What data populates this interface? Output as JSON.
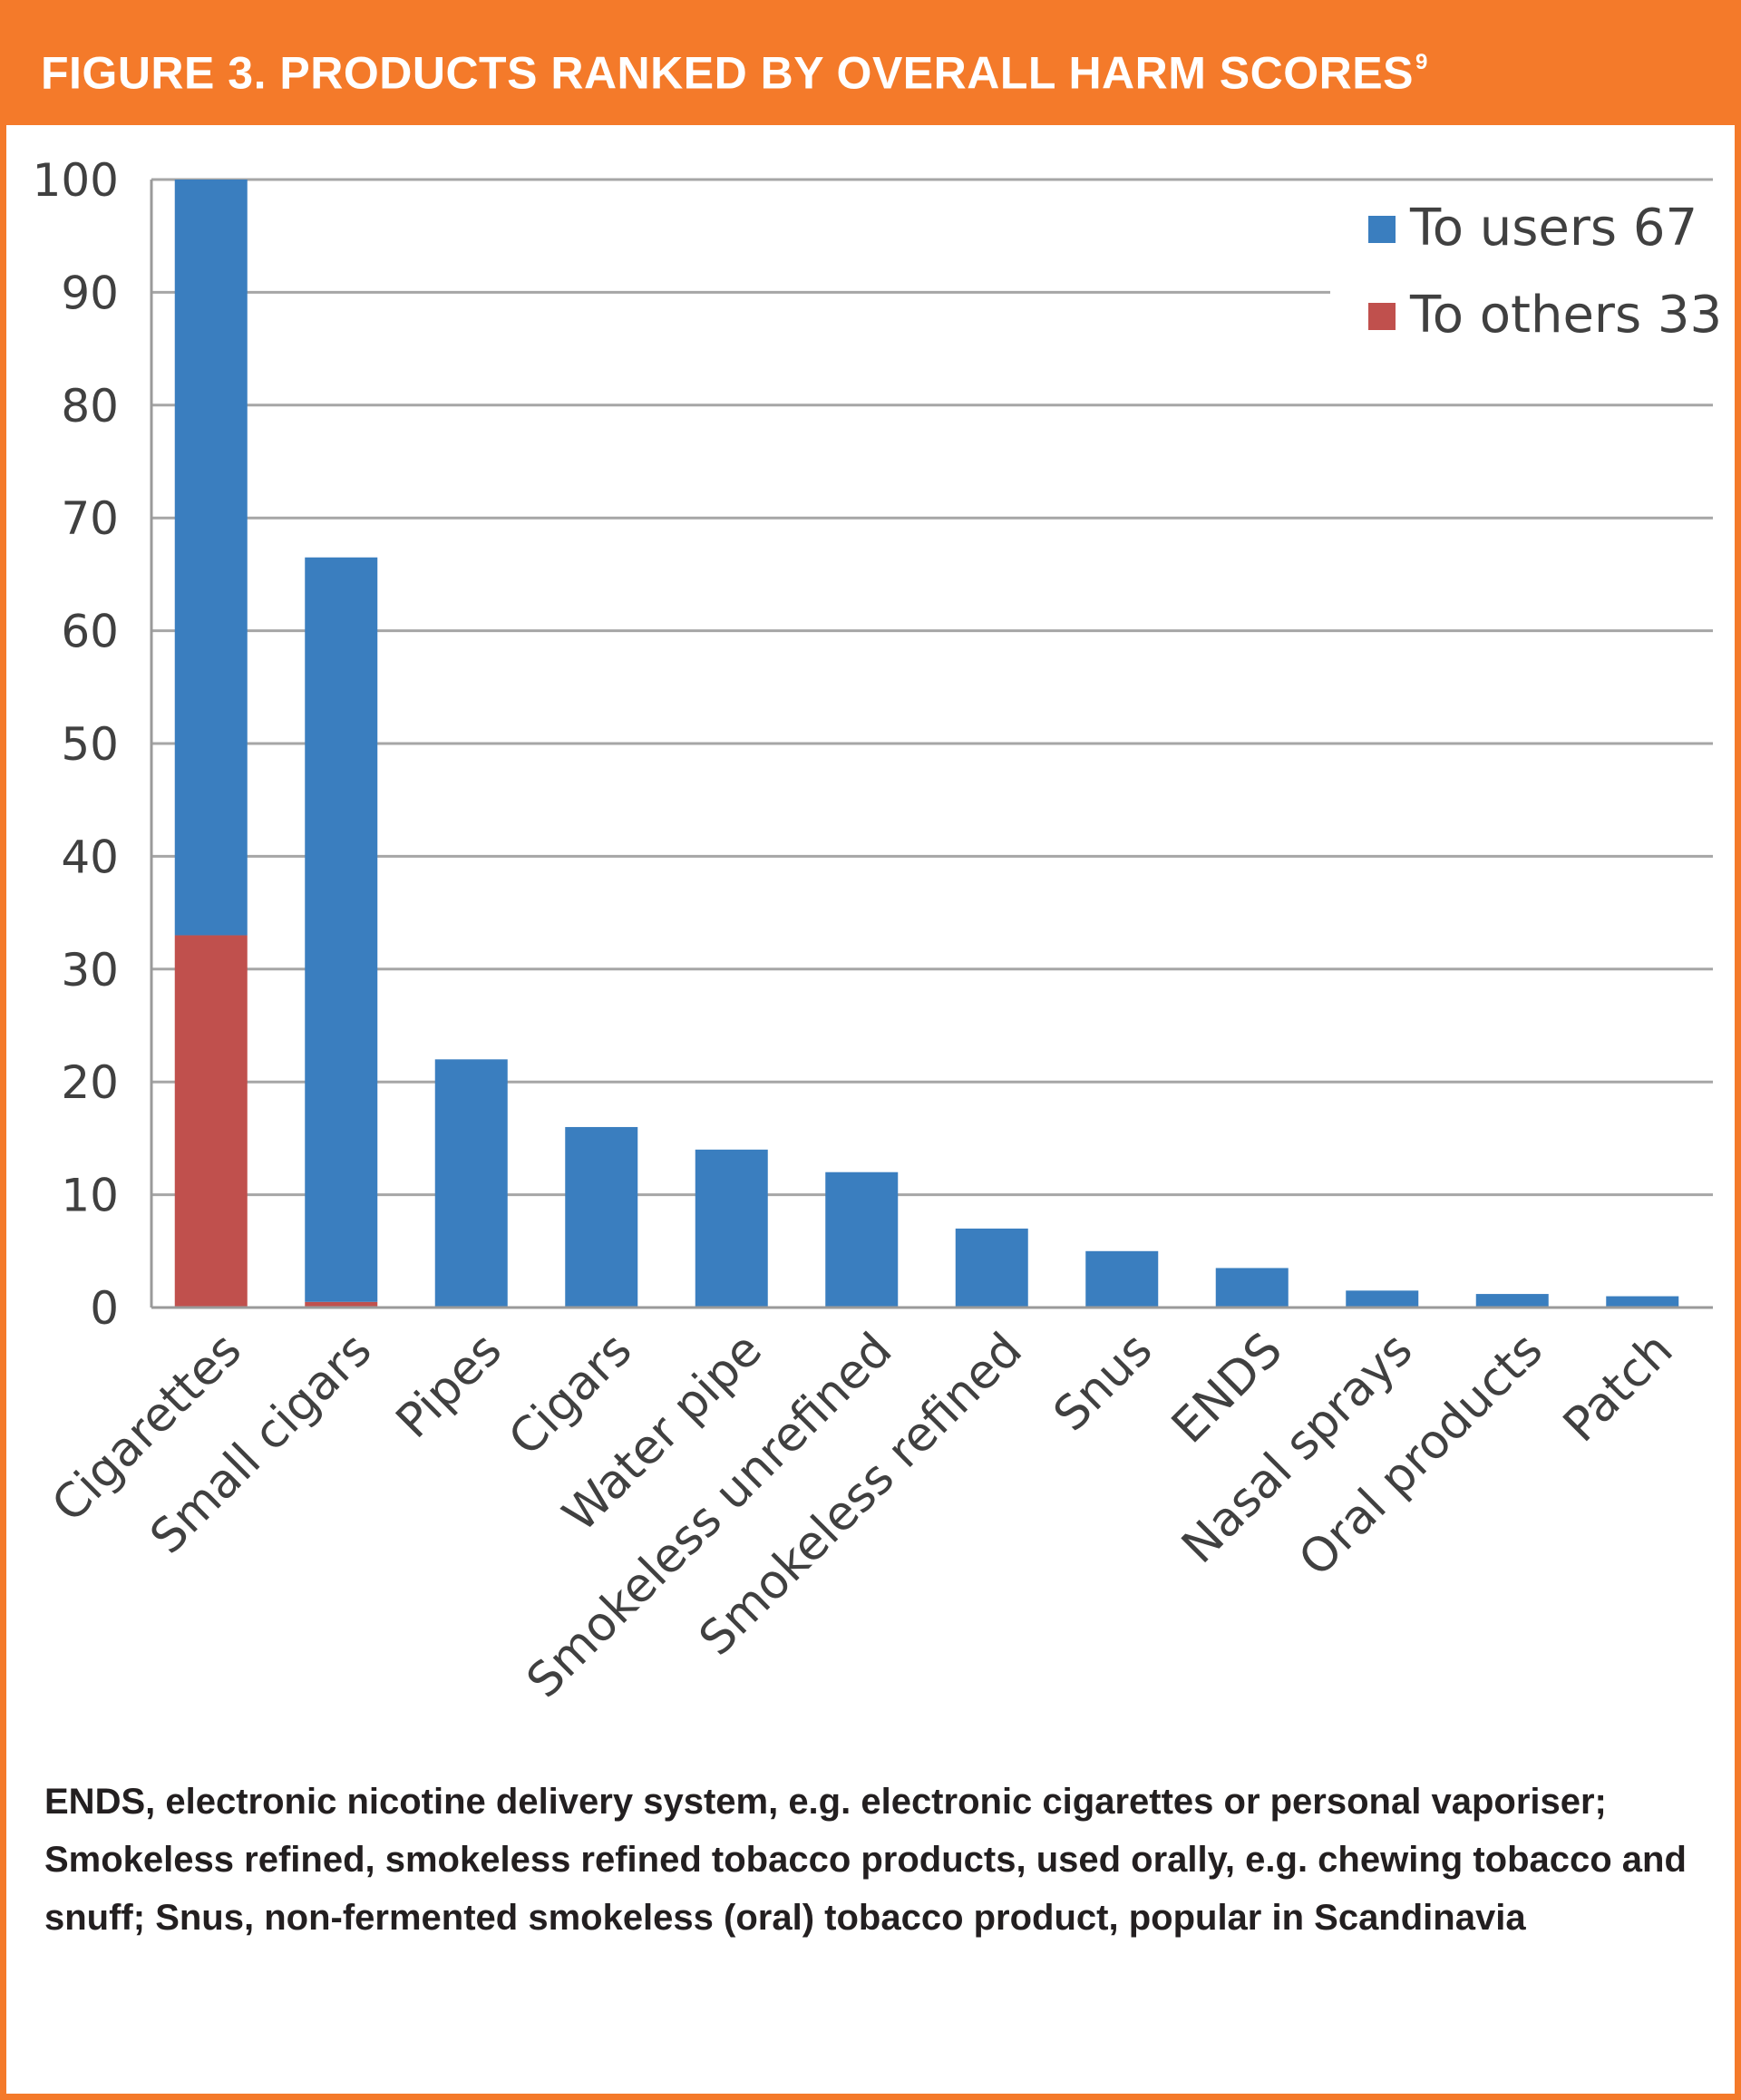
{
  "figure": {
    "title": "FIGURE 3. PRODUCTS RANKED BY OVERALL HARM SCORES",
    "title_superscript": "9",
    "caption": "ENDS, electronic nicotine delivery system, e.g. electronic cigarettes or personal vaporiser; Smokeless refined, smokeless refined tobacco products, used orally, e.g. chewing tobacco and snuff; Snus, non-fermented smokeless (oral) tobacco product, popular in Scandinavia",
    "header_color": "#f47a2a"
  },
  "chart_data": {
    "type": "bar",
    "stacked": true,
    "categories": [
      "Cigarettes",
      "Small cigars",
      "Pipes",
      "Cigars",
      "Water pipe",
      "Smokeless unrefined",
      "Smokeless refined",
      "Snus",
      "ENDS",
      "Nasal sprays",
      "Oral products",
      "Patch"
    ],
    "series": [
      {
        "name": "To others 33",
        "color": "#c0504d",
        "values": [
          33,
          0.5,
          0,
          0,
          0,
          0,
          0,
          0,
          0,
          0,
          0,
          0
        ]
      },
      {
        "name": "To users 67",
        "color": "#3a7ebf",
        "values": [
          67,
          66,
          22,
          16,
          14,
          12,
          7,
          5,
          3.5,
          1.5,
          1.2,
          1
        ]
      }
    ],
    "ylim": [
      0,
      100
    ],
    "yticks": [
      0,
      10,
      20,
      30,
      40,
      50,
      60,
      70,
      80,
      90,
      100
    ],
    "grid": true,
    "legend_position": "top-right",
    "title": "",
    "xlabel": "",
    "ylabel": ""
  }
}
